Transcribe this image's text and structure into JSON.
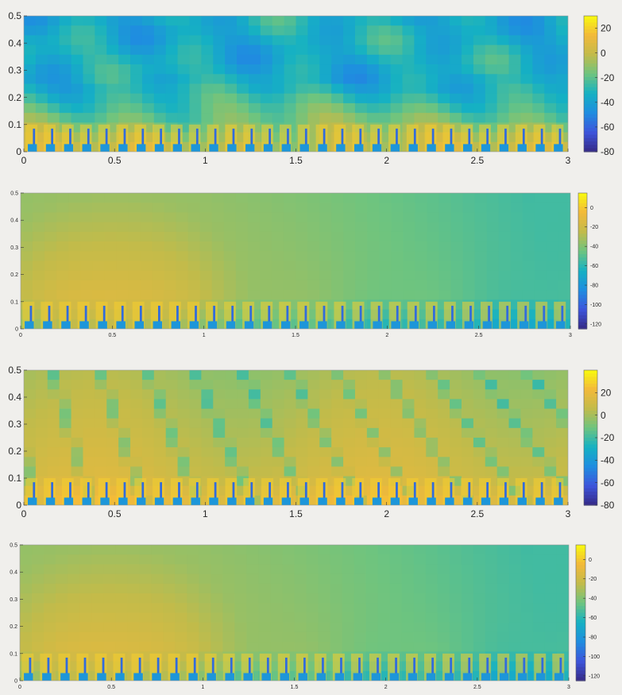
{
  "chart_data": [
    {
      "type": "heatmap",
      "x": {
        "min": 0,
        "max": 3,
        "ticks": [
          "0",
          "0.5",
          "1",
          "1.5",
          "2",
          "2.5",
          "3"
        ]
      },
      "y": {
        "min": 0,
        "max": 0.5,
        "ticks": [
          "0",
          "0.1",
          "0.2",
          "0.3",
          "0.4",
          "0.5"
        ]
      },
      "colorbar": {
        "min": -80,
        "max": 30,
        "ticks": [
          "-80",
          "-60",
          "-40",
          "-20",
          "0",
          "20"
        ]
      },
      "pattern": "ripples"
    },
    {
      "type": "heatmap",
      "x": {
        "min": 0,
        "max": 3,
        "ticks": [
          "0",
          "0.5",
          "1",
          "1.5",
          "2",
          "2.5",
          "3"
        ]
      },
      "y": {
        "min": 0,
        "max": 0.5,
        "ticks": [
          "0",
          "0.1",
          "0.2",
          "0.3",
          "0.4",
          "0.5"
        ]
      },
      "colorbar": {
        "min": -125,
        "max": 15,
        "ticks": [
          "-120",
          "-100",
          "-80",
          "-60",
          "-40",
          "-20",
          "0"
        ]
      },
      "pattern": "source",
      "source_x": 0.5
    },
    {
      "type": "heatmap",
      "x": {
        "min": 0,
        "max": 3,
        "ticks": [
          "0",
          "0.5",
          "1",
          "1.5",
          "2",
          "2.5",
          "3"
        ]
      },
      "y": {
        "min": 0,
        "max": 0.5,
        "ticks": [
          "0",
          "0.1",
          "0.2",
          "0.3",
          "0.4",
          "0.5"
        ]
      },
      "colorbar": {
        "min": -80,
        "max": 40,
        "ticks": [
          "-80",
          "-60",
          "-40",
          "-20",
          "0",
          "20"
        ]
      },
      "pattern": "stripes"
    },
    {
      "type": "heatmap",
      "x": {
        "min": 0,
        "max": 3,
        "ticks": [
          "0",
          "0.5",
          "1",
          "1.5",
          "2",
          "2.5",
          "3"
        ]
      },
      "y": {
        "min": 0,
        "max": 0.5,
        "ticks": [
          "0",
          "0.1",
          "0.2",
          "0.3",
          "0.4",
          "0.5"
        ]
      },
      "colorbar": {
        "min": -125,
        "max": 15,
        "ticks": [
          "-120",
          "-100",
          "-80",
          "-60",
          "-40",
          "-20",
          "0"
        ]
      },
      "pattern": "source",
      "source_x": 0.5
    }
  ],
  "colors": {
    "parula": [
      "#352a87",
      "#3d55db",
      "#1f8de0",
      "#15b1c3",
      "#6ec47f",
      "#c2bb4a",
      "#f3b93a",
      "#f9fb0e"
    ]
  }
}
